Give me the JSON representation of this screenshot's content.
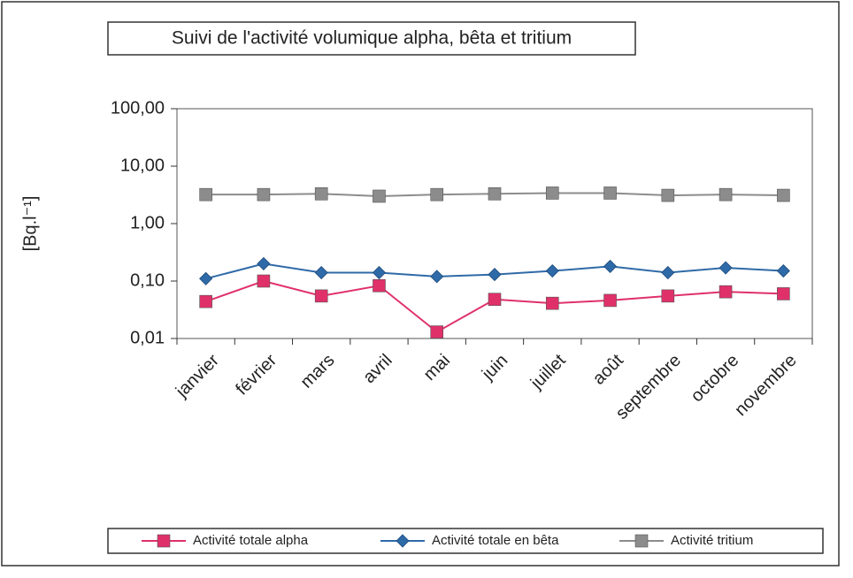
{
  "chart_data": {
    "type": "line",
    "title": "Suivi de l'activité volumique alpha, bêta et tritium",
    "y_label": "[Bq.l⁻¹]",
    "categories": [
      "janvier",
      "février",
      "mars",
      "avril",
      "mai",
      "juin",
      "juillet",
      "août",
      "septembre",
      "octobre",
      "novembre"
    ],
    "series": [
      {
        "name": "Activité totale alpha",
        "color": "#e0306a",
        "marker": "square",
        "values": [
          0.044,
          0.1,
          0.055,
          0.083,
          0.013,
          0.048,
          0.041,
          0.046,
          0.055,
          0.065,
          0.06
        ]
      },
      {
        "name": "Activité totale en bêta",
        "color": "#2f6aa8",
        "marker": "diamond",
        "values": [
          0.11,
          0.2,
          0.14,
          0.14,
          0.12,
          0.13,
          0.15,
          0.18,
          0.14,
          0.17,
          0.15
        ]
      },
      {
        "name": "Activité  tritium",
        "color": "#8c8c8c",
        "marker": "square",
        "values": [
          3.2,
          3.2,
          3.3,
          3.0,
          3.2,
          3.3,
          3.4,
          3.4,
          3.1,
          3.2,
          3.1
        ]
      }
    ],
    "log_y": true,
    "ylim": [
      0.01,
      100
    ],
    "yticks": [
      {
        "value": 0.01,
        "label": "0,01"
      },
      {
        "value": 0.1,
        "label": "0,10"
      },
      {
        "value": 1,
        "label": "1,00"
      },
      {
        "value": 10,
        "label": "10,00"
      },
      {
        "value": 100,
        "label": "100,00"
      }
    ],
    "legend": "bottom"
  }
}
